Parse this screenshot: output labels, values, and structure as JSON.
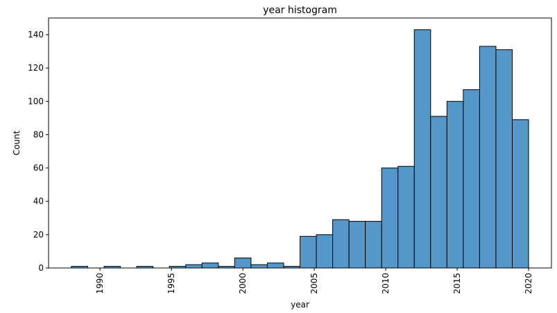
{
  "chart_data": {
    "type": "bar",
    "title": "year histogram",
    "xlabel": "year",
    "ylabel": "Count",
    "bar_color": "#5497c8",
    "edge_color": "#000000",
    "xlim": [
      1986.4,
      2021.6
    ],
    "ylim": [
      0,
      150
    ],
    "x_ticks": [
      1990,
      1995,
      2000,
      2005,
      2010,
      2015,
      2020
    ],
    "y_ticks": [
      0,
      20,
      40,
      60,
      80,
      100,
      120,
      140
    ],
    "bins": [
      {
        "start": 1988.0,
        "end": 1989.143,
        "count": 1
      },
      {
        "start": 1989.143,
        "end": 1990.286,
        "count": 0
      },
      {
        "start": 1990.286,
        "end": 1991.429,
        "count": 1
      },
      {
        "start": 1991.429,
        "end": 1992.571,
        "count": 0
      },
      {
        "start": 1992.571,
        "end": 1993.714,
        "count": 1
      },
      {
        "start": 1993.714,
        "end": 1994.857,
        "count": 0
      },
      {
        "start": 1994.857,
        "end": 1996.0,
        "count": 1
      },
      {
        "start": 1996.0,
        "end": 1997.143,
        "count": 2
      },
      {
        "start": 1997.143,
        "end": 1998.286,
        "count": 3
      },
      {
        "start": 1998.286,
        "end": 1999.429,
        "count": 1
      },
      {
        "start": 1999.429,
        "end": 2000.571,
        "count": 6
      },
      {
        "start": 2000.571,
        "end": 2001.714,
        "count": 2
      },
      {
        "start": 2001.714,
        "end": 2002.857,
        "count": 3
      },
      {
        "start": 2002.857,
        "end": 2004.0,
        "count": 1
      },
      {
        "start": 2004.0,
        "end": 2005.143,
        "count": 19
      },
      {
        "start": 2005.143,
        "end": 2006.286,
        "count": 20
      },
      {
        "start": 2006.286,
        "end": 2007.429,
        "count": 29
      },
      {
        "start": 2007.429,
        "end": 2008.571,
        "count": 28
      },
      {
        "start": 2008.571,
        "end": 2009.714,
        "count": 28
      },
      {
        "start": 2009.714,
        "end": 2010.857,
        "count": 60
      },
      {
        "start": 2010.857,
        "end": 2012.0,
        "count": 61
      },
      {
        "start": 2012.0,
        "end": 2013.143,
        "count": 143
      },
      {
        "start": 2013.143,
        "end": 2014.286,
        "count": 91
      },
      {
        "start": 2014.286,
        "end": 2015.429,
        "count": 100
      },
      {
        "start": 2015.429,
        "end": 2016.571,
        "count": 107
      },
      {
        "start": 2016.571,
        "end": 2017.714,
        "count": 133
      },
      {
        "start": 2017.714,
        "end": 2018.857,
        "count": 131
      },
      {
        "start": 2018.857,
        "end": 2020.0,
        "count": 89
      }
    ]
  }
}
